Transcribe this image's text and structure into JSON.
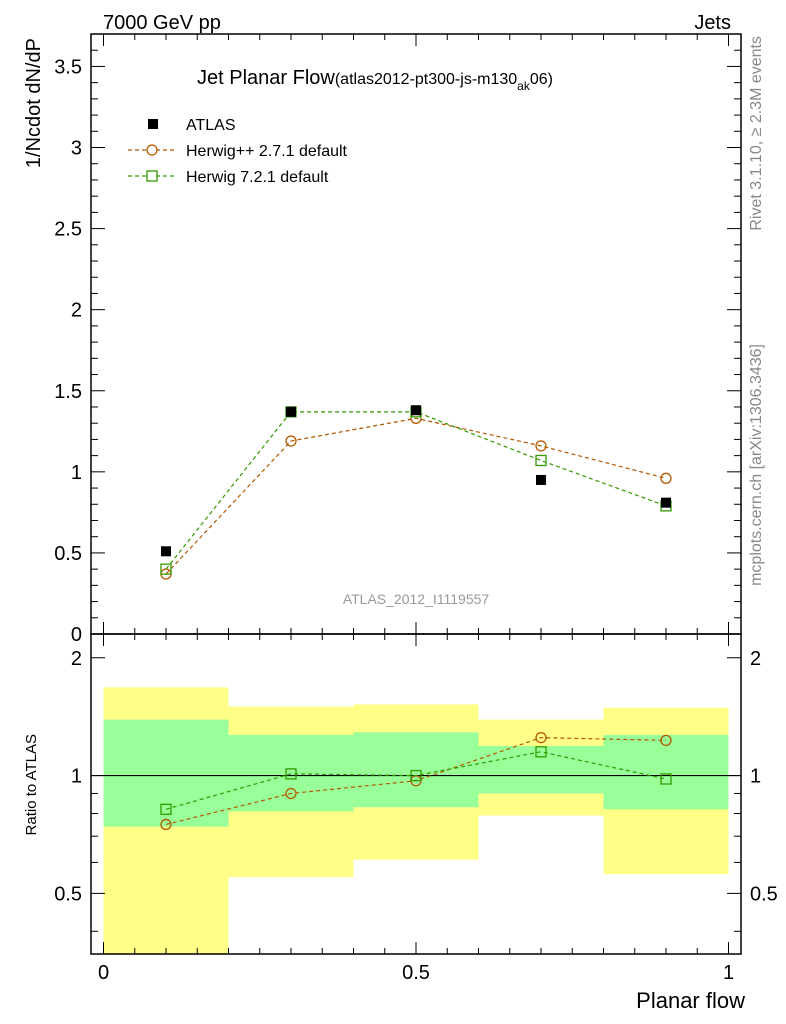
{
  "header": {
    "left": "7000 GeV pp",
    "right": "Jets"
  },
  "title": {
    "main": "Jet Planar Flow",
    "sub_prefix": "(atlas2012-pt300-js-m130",
    "sub_subscript": "ak",
    "sub_suffix": "06)"
  },
  "side_text": {
    "rivet": "Rivet 3.1.10, ≥ 2.3M events",
    "mcplots": "mcplots.cern.ch [arXiv:1306.3436]"
  },
  "watermark": "ATLAS_2012_I1119557",
  "xlabel": "Planar flow",
  "ylabel_top": "1/Ncdot dN/dP",
  "ylabel_bottom": "Ratio to ATLAS",
  "colors": {
    "data": "#000000",
    "herwigpp": "#b35900",
    "herwig7": "#339900",
    "band_inner": "#99ff99",
    "band_outer": "#ffff88"
  },
  "chart_data": {
    "type": "scatter",
    "x": [
      0.1,
      0.3,
      0.5,
      0.7,
      0.9
    ],
    "bins": [
      [
        0.0,
        0.2
      ],
      [
        0.2,
        0.4
      ],
      [
        0.4,
        0.6
      ],
      [
        0.6,
        0.8
      ],
      [
        0.8,
        1.0
      ]
    ],
    "xlim": [
      -0.02,
      1.02
    ],
    "ylim": [
      0,
      3.7
    ],
    "xticks": [
      {
        "v": 0,
        "label": "0"
      },
      {
        "v": 0.5,
        "label": "0.5"
      },
      {
        "v": 1,
        "label": "1"
      }
    ],
    "yticks": [
      {
        "v": 0,
        "label": "0"
      },
      {
        "v": 0.5,
        "label": "0.5"
      },
      {
        "v": 1,
        "label": "1"
      },
      {
        "v": 1.5,
        "label": "1.5"
      },
      {
        "v": 2,
        "label": "2"
      },
      {
        "v": 2.5,
        "label": "2.5"
      },
      {
        "v": 3,
        "label": "3"
      },
      {
        "v": 3.5,
        "label": "3.5"
      }
    ],
    "series": [
      {
        "name": "ATLAS",
        "marker": "filled-square",
        "values": [
          0.51,
          1.37,
          1.38,
          0.95,
          0.81
        ]
      },
      {
        "name": "Herwig++ 2.7.1 default",
        "marker": "open-circle",
        "line": "dashed",
        "values": [
          0.37,
          1.19,
          1.33,
          1.16,
          0.96
        ]
      },
      {
        "name": "Herwig 7.2.1 default",
        "marker": "open-square",
        "line": "dashed",
        "values": [
          0.4,
          1.37,
          1.37,
          1.07,
          0.79
        ]
      }
    ],
    "legend_position": "top-left",
    "ratio": {
      "ylim": [
        0.35,
        2.3
      ],
      "yticks": [
        {
          "v": 0.5,
          "label": "0.5"
        },
        {
          "v": 1,
          "label": "1"
        },
        {
          "v": 2,
          "label": "2"
        }
      ],
      "band_inner": [
        [
          0.74,
          1.39
        ],
        [
          0.81,
          1.27
        ],
        [
          0.83,
          1.29
        ],
        [
          0.9,
          1.19
        ],
        [
          0.82,
          1.27
        ]
      ],
      "band_outer": [
        [
          0.3,
          1.68
        ],
        [
          0.55,
          1.5
        ],
        [
          0.61,
          1.52
        ],
        [
          0.79,
          1.39
        ],
        [
          0.56,
          1.49
        ]
      ],
      "series": [
        {
          "name": "Herwig++ 2.7.1 default",
          "values": [
            0.75,
            0.9,
            0.97,
            1.25,
            1.23
          ]
        },
        {
          "name": "Herwig 7.2.1 default",
          "values": [
            0.82,
            1.01,
            1.0,
            1.15,
            0.98
          ]
        }
      ]
    }
  }
}
